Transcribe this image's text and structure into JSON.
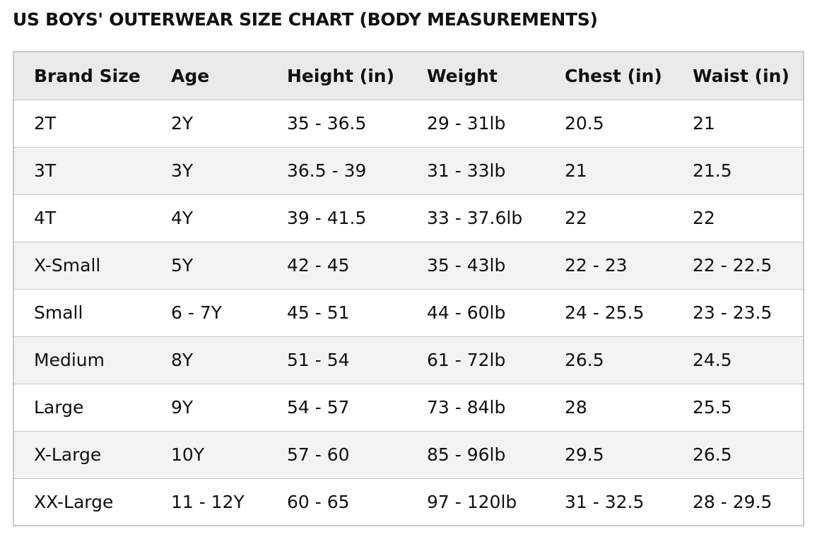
{
  "title": "US BOYS' OUTERWEAR SIZE CHART (BODY MEASUREMENTS)",
  "table": {
    "header": [
      "Brand Size",
      "Age",
      "Height (in)",
      "Weight",
      "Chest (in)",
      "Waist (in)"
    ],
    "rows": [
      [
        "2T",
        "2Y",
        "35 - 36.5",
        "29 - 31lb",
        "20.5",
        "21"
      ],
      [
        "3T",
        "3Y",
        "36.5 - 39",
        "31 - 33lb",
        "21",
        "21.5"
      ],
      [
        "4T",
        "4Y",
        "39 - 41.5",
        "33 - 37.6lb",
        "22",
        "22"
      ],
      [
        "X-Small",
        "5Y",
        "42 - 45",
        "35 - 43lb",
        "22 - 23",
        "22 - 22.5"
      ],
      [
        "Small",
        "6 - 7Y",
        "45 - 51",
        "44 - 60lb",
        "24 - 25.5",
        "23 - 23.5"
      ],
      [
        "Medium",
        "8Y",
        "51 - 54",
        "61 - 72lb",
        "26.5",
        "24.5"
      ],
      [
        "Large",
        "9Y",
        "54 - 57",
        "73 - 84lb",
        "28",
        "25.5"
      ],
      [
        "X-Large",
        "10Y",
        "57 - 60",
        "85 - 96lb",
        "29.5",
        "26.5"
      ],
      [
        "XX-Large",
        "11 - 12Y",
        "60 - 65",
        "97 - 120lb",
        "31 - 32.5",
        "28 - 29.5"
      ]
    ]
  }
}
